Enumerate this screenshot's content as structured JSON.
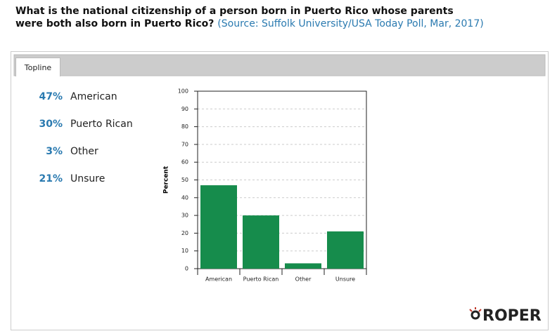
{
  "question": "What is the national citizenship of a person born in Puerto Rico whose parents were both also born in Puerto Rico?",
  "source": "(Source: Suffolk University/USA Today Poll, Mar, 2017)",
  "tab": "Topline",
  "logo": "ROPER",
  "chart_data": {
    "type": "bar",
    "categories": [
      "American",
      "Puerto Rican",
      "Other",
      "Unsure"
    ],
    "values": [
      47,
      30,
      3,
      21
    ],
    "value_labels": [
      "47%",
      "30%",
      "3%",
      "21%"
    ],
    "color": "#168c4c",
    "y_label": "Percent",
    "ylim": [
      0,
      100
    ],
    "yticks": [
      0,
      10,
      20,
      30,
      40,
      50,
      60,
      70,
      80,
      90,
      100
    ],
    "grid": true
  }
}
